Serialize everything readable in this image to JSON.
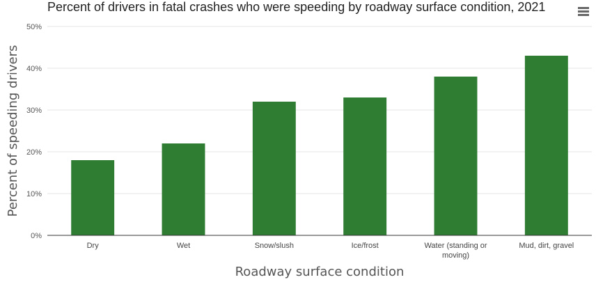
{
  "chart_data": {
    "type": "bar",
    "title": "Percent of drivers in fatal crashes who were speeding by roadway surface condition, 2021",
    "xlabel": "Roadway surface condition",
    "ylabel": "Percent of speeding drivers",
    "categories": [
      "Dry",
      "Wet",
      "Snow/slush",
      "Ice/frost",
      "Water (standing or moving)",
      "Mud, dirt, gravel"
    ],
    "category_lines": [
      [
        "Dry"
      ],
      [
        "Wet"
      ],
      [
        "Snow/slush"
      ],
      [
        "Ice/frost"
      ],
      [
        "Water (standing or",
        "moving)"
      ],
      [
        "Mud, dirt, gravel"
      ]
    ],
    "values": [
      18,
      22,
      32,
      33,
      38,
      43
    ],
    "ylim": [
      0,
      50
    ],
    "yticks": [
      "0%",
      "10%",
      "20%",
      "30%",
      "40%",
      "50%"
    ],
    "grid": true,
    "bar_color": "#2e7d32"
  },
  "menu": {
    "icon": "hamburger-menu-icon"
  }
}
